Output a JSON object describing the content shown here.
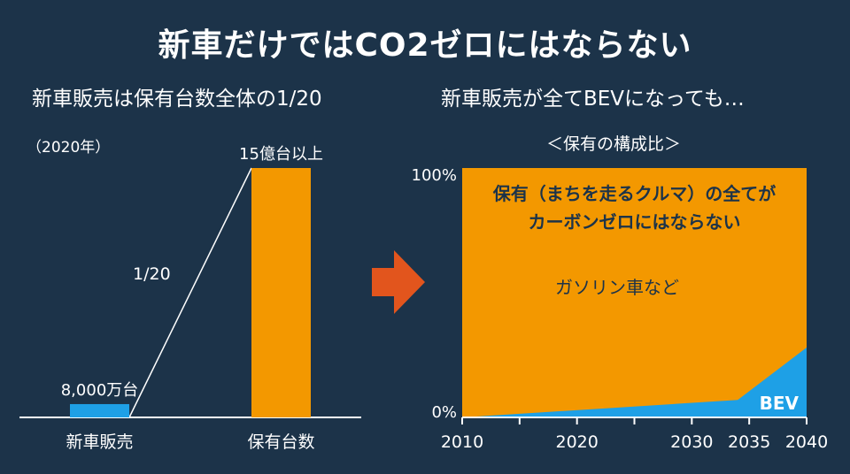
{
  "title": "新車だけではCO2ゼロにはならない",
  "left_panel": {
    "subtitle": "新車販売は保有台数全体の1/20",
    "year_note": "（2020年）",
    "ratio_label": "1/20"
  },
  "right_panel": {
    "subtitle": "新車販売が全てBEVになっても…",
    "caption": "＜保有の構成比＞",
    "message_line1": "保有（まちを走るクルマ）の全てが",
    "message_line2": "カーボンゼロにはならない"
  },
  "colors": {
    "background": "#1c3349",
    "orange": "#f39800",
    "blue": "#1ea0e6",
    "arrow": "#e2551d"
  },
  "chart_data": [
    {
      "type": "bar",
      "categories": [
        "新車販売",
        "保有台数"
      ],
      "values": [
        0.8,
        15
      ],
      "unit": "億台",
      "data_labels": [
        "8,000万台",
        "15億台以上"
      ],
      "ylim": [
        0,
        15
      ],
      "colors": [
        "#1ea0e6",
        "#f39800"
      ]
    },
    {
      "type": "area",
      "x_ticks": [
        2010,
        2020,
        2030,
        2035,
        2040
      ],
      "x_minor_ticks": [
        2015,
        2025
      ],
      "y_ticks": [
        "0%",
        "100%"
      ],
      "ylim": [
        0,
        100
      ],
      "xlim": [
        2010,
        2040
      ],
      "series": [
        {
          "name": "BEV",
          "points": [
            [
              2010,
              0
            ],
            [
              2034,
              7
            ],
            [
              2040,
              28
            ]
          ]
        },
        {
          "name": "ガソリン車など",
          "points": [
            [
              2010,
              100
            ],
            [
              2040,
              100
            ]
          ]
        }
      ]
    }
  ]
}
